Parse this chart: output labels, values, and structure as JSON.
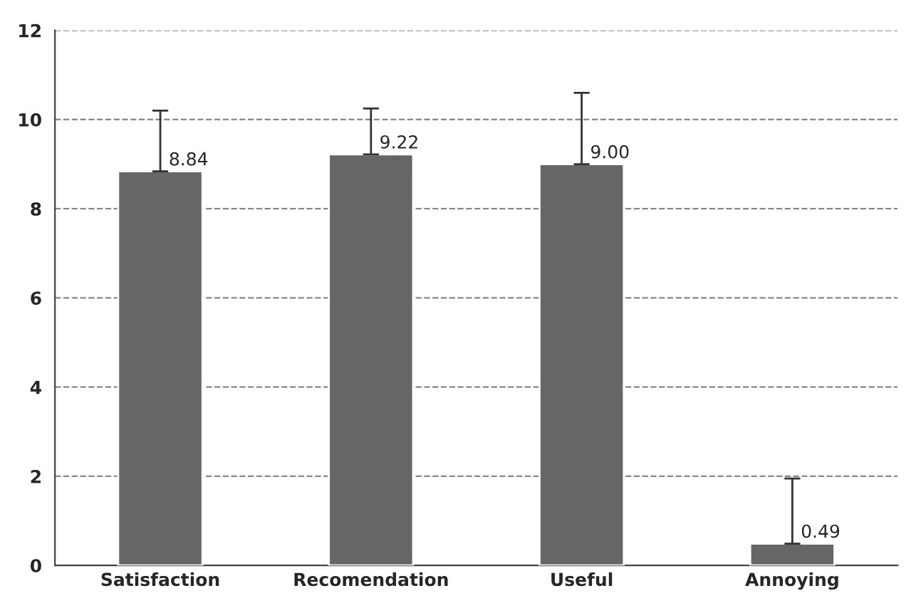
{
  "chart_data": {
    "type": "bar",
    "categories": [
      "Satisfaction",
      "Recomendation",
      "Useful",
      "Annoying"
    ],
    "values": [
      8.84,
      9.22,
      9.0,
      0.49
    ],
    "value_labels": [
      "8.84",
      "9.22",
      "9.00",
      "0.49"
    ],
    "errors": [
      [
        8.84,
        10.2
      ],
      [
        9.22,
        10.25
      ],
      [
        9.0,
        10.6
      ],
      [
        0.49,
        1.95
      ]
    ],
    "color": "#666666",
    "ylim": [
      0,
      12
    ],
    "yticks": [
      0,
      2,
      4,
      6,
      8,
      10,
      12
    ],
    "grid": "y"
  }
}
